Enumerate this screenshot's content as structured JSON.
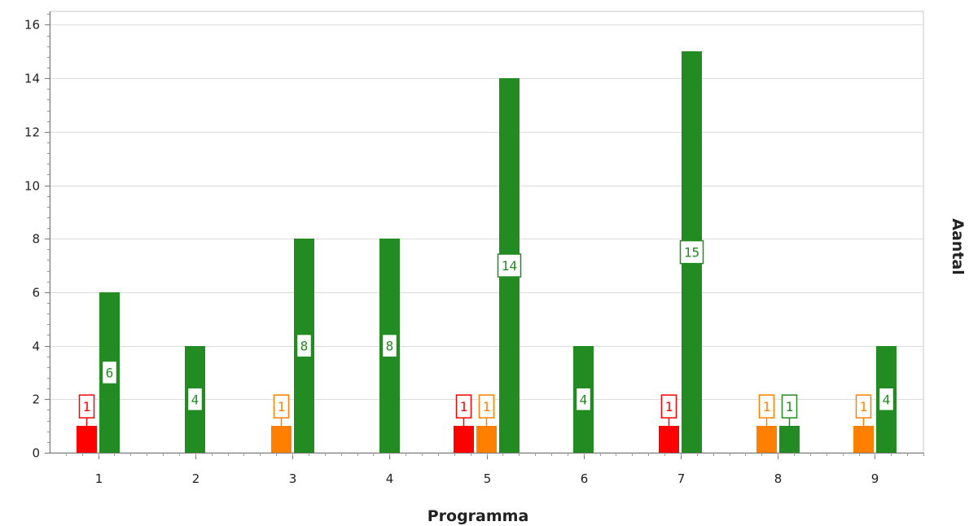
{
  "chart_data": {
    "type": "bar",
    "categories": [
      "1",
      "2",
      "3",
      "4",
      "5",
      "6",
      "7",
      "8",
      "9"
    ],
    "series": [
      {
        "color": "#ff0000",
        "values": [
          1,
          0,
          0,
          0,
          1,
          0,
          1,
          0,
          0
        ]
      },
      {
        "color": "#ff8000",
        "values": [
          0,
          0,
          1,
          0,
          1,
          0,
          0,
          1,
          1
        ]
      },
      {
        "color": "#228b22",
        "values": [
          6,
          4,
          8,
          8,
          14,
          4,
          15,
          1,
          4
        ]
      }
    ],
    "xlabel": "Programma",
    "ylabel": "Aantal",
    "ylim": [
      0,
      16.5
    ],
    "yticks": [
      "0",
      "2",
      "4",
      "6",
      "8",
      "10",
      "12",
      "14",
      "16"
    ],
    "grid": true,
    "data_labels": true
  }
}
